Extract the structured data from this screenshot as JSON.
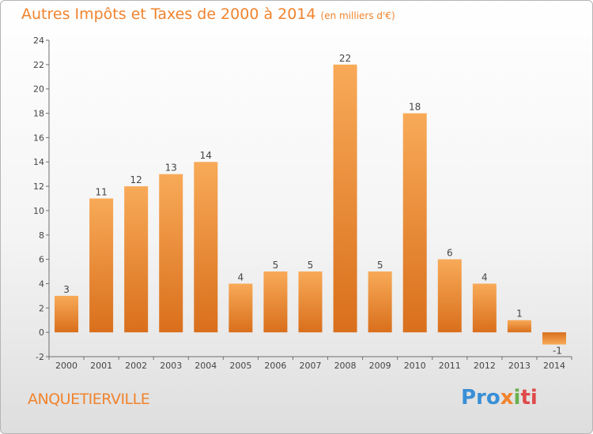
{
  "header": {
    "title": "Autres Impôts et Taxes de 2000 à 2014",
    "unit": "(en milliers d'€)"
  },
  "footer": {
    "commune": "ANQUETIERVILLE",
    "logo": [
      "Pro",
      "x",
      "i",
      "ti"
    ]
  },
  "colors": {
    "accent": "#f0832d",
    "bar_light": "#f7a552",
    "bar_dark": "#d86f1c"
  },
  "chart_data": {
    "type": "bar",
    "title": "Autres Impôts et Taxes de 2000 à 2014",
    "subtitle": "(en milliers d'€)",
    "xlabel": "",
    "ylabel": "",
    "categories": [
      "2000",
      "2001",
      "2002",
      "2003",
      "2004",
      "2005",
      "2006",
      "2007",
      "2008",
      "2009",
      "2010",
      "2011",
      "2012",
      "2013",
      "2014"
    ],
    "values": [
      3,
      11,
      12,
      13,
      14,
      4,
      5,
      5,
      22,
      5,
      18,
      6,
      4,
      1,
      -1
    ],
    "ylim": [
      -2,
      24
    ],
    "yticks": [
      -2,
      0,
      2,
      4,
      6,
      8,
      10,
      12,
      14,
      16,
      18,
      20,
      22,
      24
    ],
    "grid": false
  }
}
